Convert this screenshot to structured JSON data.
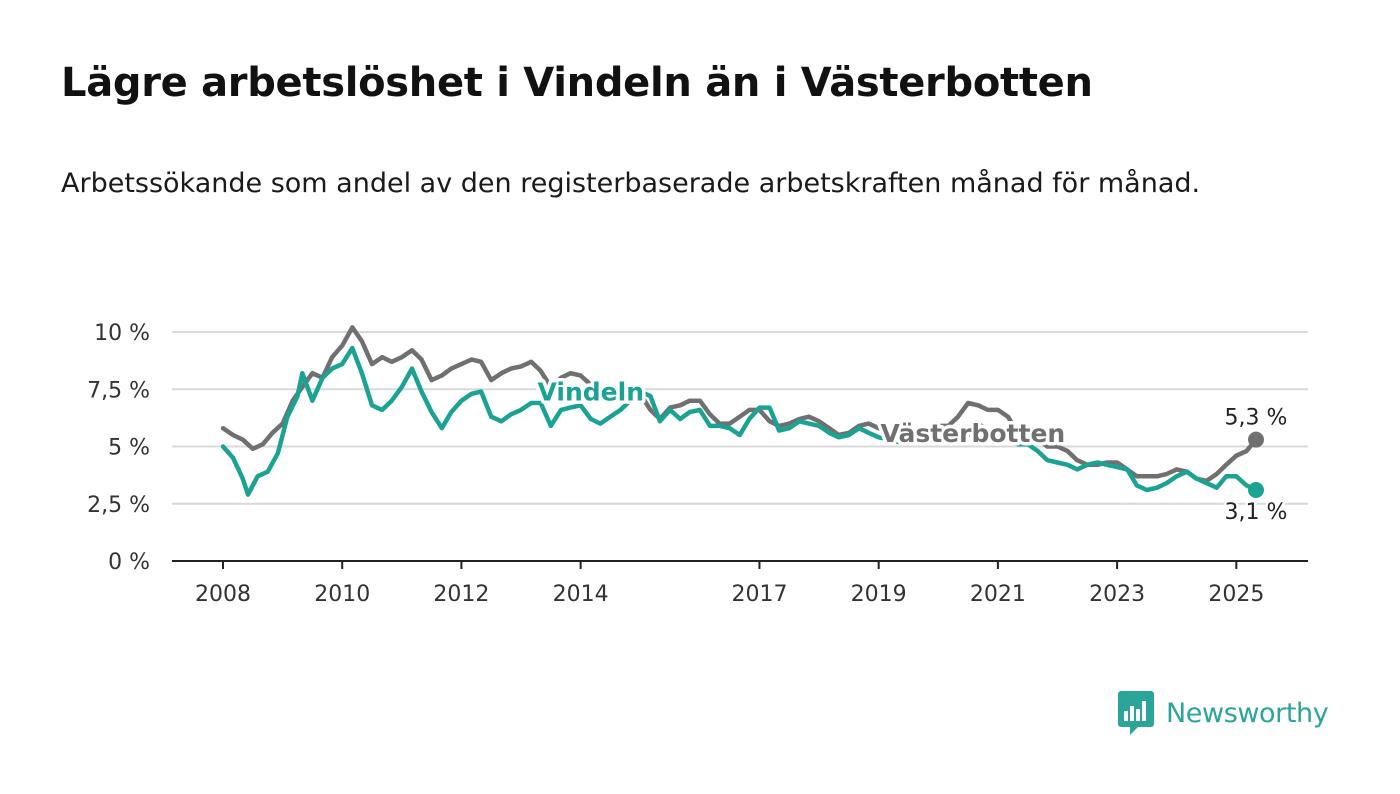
{
  "title": "Lägre arbetslöshet i Vindeln än i Västerbotten",
  "subtitle": "Arbetssökande som andel av den registerbaserade arbetskraften månad för månad.",
  "brand": {
    "name": "Newsworthy",
    "icon": "newsworthy-logo-icon",
    "color": "#2ba597"
  },
  "chart_data": {
    "type": "line",
    "title": "",
    "xlabel": "",
    "ylabel": "",
    "ylim": [
      0,
      10
    ],
    "xlim": [
      2008.0,
      2025.33
    ],
    "grid": true,
    "x_ticks": [
      "2008",
      "2010",
      "2012",
      "2014",
      "2017",
      "2019",
      "2021",
      "2023",
      "2025"
    ],
    "y_ticks": [
      {
        "value": 0,
        "label": "0 %"
      },
      {
        "value": 2.5,
        "label": "2,5 %"
      },
      {
        "value": 5,
        "label": "5 %"
      },
      {
        "value": 7.5,
        "label": "7,5 %"
      },
      {
        "value": 10,
        "label": "10 %"
      }
    ],
    "series": [
      {
        "name": "Västerbotten",
        "color": "#707070",
        "last_value_label": "5,3 %",
        "points": [
          [
            2008.0,
            5.8
          ],
          [
            2008.17,
            5.5
          ],
          [
            2008.33,
            5.3
          ],
          [
            2008.5,
            4.9
          ],
          [
            2008.67,
            5.1
          ],
          [
            2008.83,
            5.6
          ],
          [
            2009.0,
            6.0
          ],
          [
            2009.17,
            7.0
          ],
          [
            2009.33,
            7.6
          ],
          [
            2009.5,
            8.2
          ],
          [
            2009.67,
            8.0
          ],
          [
            2009.83,
            8.9
          ],
          [
            2010.0,
            9.4
          ],
          [
            2010.17,
            10.2
          ],
          [
            2010.33,
            9.6
          ],
          [
            2010.5,
            8.6
          ],
          [
            2010.67,
            8.9
          ],
          [
            2010.83,
            8.7
          ],
          [
            2011.0,
            8.9
          ],
          [
            2011.17,
            9.2
          ],
          [
            2011.33,
            8.8
          ],
          [
            2011.5,
            7.9
          ],
          [
            2011.67,
            8.1
          ],
          [
            2011.83,
            8.4
          ],
          [
            2012.0,
            8.6
          ],
          [
            2012.17,
            8.8
          ],
          [
            2012.33,
            8.7
          ],
          [
            2012.5,
            7.9
          ],
          [
            2012.67,
            8.2
          ],
          [
            2012.83,
            8.4
          ],
          [
            2013.0,
            8.5
          ],
          [
            2013.17,
            8.7
          ],
          [
            2013.33,
            8.3
          ],
          [
            2013.5,
            7.6
          ],
          [
            2013.67,
            8.0
          ],
          [
            2013.83,
            8.2
          ],
          [
            2014.0,
            8.1
          ],
          [
            2014.17,
            7.7
          ],
          [
            2014.33,
            7.4
          ],
          [
            2014.5,
            7.0
          ],
          [
            2014.67,
            7.2
          ],
          [
            2014.83,
            7.3
          ],
          [
            2015.0,
            7.3
          ],
          [
            2015.17,
            6.6
          ],
          [
            2015.33,
            6.2
          ],
          [
            2015.5,
            6.7
          ],
          [
            2015.67,
            6.8
          ],
          [
            2015.83,
            7.0
          ],
          [
            2016.0,
            7.0
          ],
          [
            2016.17,
            6.4
          ],
          [
            2016.33,
            6.0
          ],
          [
            2016.5,
            6.0
          ],
          [
            2016.67,
            6.3
          ],
          [
            2016.83,
            6.6
          ],
          [
            2017.0,
            6.6
          ],
          [
            2017.17,
            6.1
          ],
          [
            2017.33,
            5.9
          ],
          [
            2017.5,
            6.0
          ],
          [
            2017.67,
            6.2
          ],
          [
            2017.83,
            6.3
          ],
          [
            2018.0,
            6.1
          ],
          [
            2018.17,
            5.8
          ],
          [
            2018.33,
            5.5
          ],
          [
            2018.5,
            5.6
          ],
          [
            2018.67,
            5.9
          ],
          [
            2018.83,
            6.0
          ],
          [
            2019.0,
            5.8
          ],
          [
            2019.17,
            5.6
          ],
          [
            2019.33,
            5.4
          ],
          [
            2019.5,
            5.3
          ],
          [
            2019.67,
            5.6
          ],
          [
            2019.83,
            5.7
          ],
          [
            2020.0,
            5.9
          ],
          [
            2020.17,
            5.9
          ],
          [
            2020.33,
            6.3
          ],
          [
            2020.5,
            6.9
          ],
          [
            2020.67,
            6.8
          ],
          [
            2020.83,
            6.6
          ],
          [
            2021.0,
            6.6
          ],
          [
            2021.17,
            6.3
          ],
          [
            2021.33,
            5.6
          ],
          [
            2021.5,
            5.4
          ],
          [
            2021.67,
            5.3
          ],
          [
            2021.83,
            5.0
          ],
          [
            2022.0,
            5.0
          ],
          [
            2022.17,
            4.8
          ],
          [
            2022.33,
            4.4
          ],
          [
            2022.5,
            4.2
          ],
          [
            2022.67,
            4.2
          ],
          [
            2022.83,
            4.3
          ],
          [
            2023.0,
            4.3
          ],
          [
            2023.17,
            4.0
          ],
          [
            2023.33,
            3.7
          ],
          [
            2023.5,
            3.7
          ],
          [
            2023.67,
            3.7
          ],
          [
            2023.83,
            3.8
          ],
          [
            2024.0,
            4.0
          ],
          [
            2024.17,
            3.9
          ],
          [
            2024.33,
            3.6
          ],
          [
            2024.5,
            3.5
          ],
          [
            2024.67,
            3.8
          ],
          [
            2024.83,
            4.2
          ],
          [
            2025.0,
            4.6
          ],
          [
            2025.17,
            4.8
          ],
          [
            2025.33,
            5.3
          ]
        ]
      },
      {
        "name": "Vindeln",
        "color": "#1aa393",
        "last_value_label": "3,1 %",
        "points": [
          [
            2008.0,
            5.0
          ],
          [
            2008.17,
            4.5
          ],
          [
            2008.33,
            3.6
          ],
          [
            2008.42,
            2.9
          ],
          [
            2008.58,
            3.7
          ],
          [
            2008.75,
            3.9
          ],
          [
            2008.92,
            4.7
          ],
          [
            2009.08,
            6.3
          ],
          [
            2009.25,
            7.2
          ],
          [
            2009.33,
            8.2
          ],
          [
            2009.5,
            7.0
          ],
          [
            2009.67,
            8.0
          ],
          [
            2009.83,
            8.4
          ],
          [
            2010.0,
            8.6
          ],
          [
            2010.17,
            9.3
          ],
          [
            2010.33,
            8.2
          ],
          [
            2010.5,
            6.8
          ],
          [
            2010.67,
            6.6
          ],
          [
            2010.83,
            7.0
          ],
          [
            2011.0,
            7.6
          ],
          [
            2011.17,
            8.4
          ],
          [
            2011.33,
            7.4
          ],
          [
            2011.5,
            6.5
          ],
          [
            2011.67,
            5.8
          ],
          [
            2011.83,
            6.5
          ],
          [
            2012.0,
            7.0
          ],
          [
            2012.17,
            7.3
          ],
          [
            2012.33,
            7.4
          ],
          [
            2012.5,
            6.3
          ],
          [
            2012.67,
            6.1
          ],
          [
            2012.83,
            6.4
          ],
          [
            2013.0,
            6.6
          ],
          [
            2013.17,
            6.9
          ],
          [
            2013.33,
            6.9
          ],
          [
            2013.5,
            5.9
          ],
          [
            2013.67,
            6.6
          ],
          [
            2013.83,
            6.7
          ],
          [
            2014.0,
            6.8
          ],
          [
            2014.17,
            6.2
          ],
          [
            2014.33,
            6.0
          ],
          [
            2014.5,
            6.3
          ],
          [
            2014.67,
            6.6
          ],
          [
            2014.83,
            7.0
          ],
          [
            2015.0,
            7.4
          ],
          [
            2015.17,
            7.2
          ],
          [
            2015.33,
            6.1
          ],
          [
            2015.5,
            6.6
          ],
          [
            2015.67,
            6.2
          ],
          [
            2015.83,
            6.5
          ],
          [
            2016.0,
            6.6
          ],
          [
            2016.17,
            5.9
          ],
          [
            2016.33,
            5.9
          ],
          [
            2016.5,
            5.8
          ],
          [
            2016.67,
            5.5
          ],
          [
            2016.83,
            6.2
          ],
          [
            2017.0,
            6.7
          ],
          [
            2017.17,
            6.7
          ],
          [
            2017.33,
            5.7
          ],
          [
            2017.5,
            5.8
          ],
          [
            2017.67,
            6.1
          ],
          [
            2017.83,
            6.0
          ],
          [
            2018.0,
            5.9
          ],
          [
            2018.17,
            5.6
          ],
          [
            2018.33,
            5.4
          ],
          [
            2018.5,
            5.5
          ],
          [
            2018.67,
            5.8
          ],
          [
            2018.83,
            5.6
          ],
          [
            2019.0,
            5.4
          ],
          [
            2019.17,
            5.3
          ],
          [
            2019.33,
            5.2
          ],
          [
            2019.5,
            5.2
          ],
          [
            2019.67,
            5.8
          ],
          [
            2019.83,
            5.7
          ],
          [
            2020.0,
            5.9
          ],
          [
            2020.17,
            5.6
          ],
          [
            2020.33,
            5.4
          ],
          [
            2020.5,
            5.5
          ],
          [
            2020.67,
            6.0
          ],
          [
            2020.83,
            5.7
          ],
          [
            2021.0,
            5.2
          ],
          [
            2021.17,
            5.3
          ],
          [
            2021.33,
            5.1
          ],
          [
            2021.5,
            5.1
          ],
          [
            2021.67,
            4.8
          ],
          [
            2021.83,
            4.4
          ],
          [
            2022.0,
            4.3
          ],
          [
            2022.17,
            4.2
          ],
          [
            2022.33,
            4.0
          ],
          [
            2022.5,
            4.2
          ],
          [
            2022.67,
            4.3
          ],
          [
            2022.83,
            4.2
          ],
          [
            2023.0,
            4.1
          ],
          [
            2023.17,
            4.0
          ],
          [
            2023.33,
            3.3
          ],
          [
            2023.5,
            3.1
          ],
          [
            2023.67,
            3.2
          ],
          [
            2023.83,
            3.4
          ],
          [
            2024.0,
            3.7
          ],
          [
            2024.17,
            3.9
          ],
          [
            2024.33,
            3.6
          ],
          [
            2024.5,
            3.4
          ],
          [
            2024.67,
            3.2
          ],
          [
            2024.83,
            3.7
          ],
          [
            2025.0,
            3.7
          ],
          [
            2025.17,
            3.3
          ],
          [
            2025.33,
            3.1
          ]
        ]
      }
    ]
  }
}
